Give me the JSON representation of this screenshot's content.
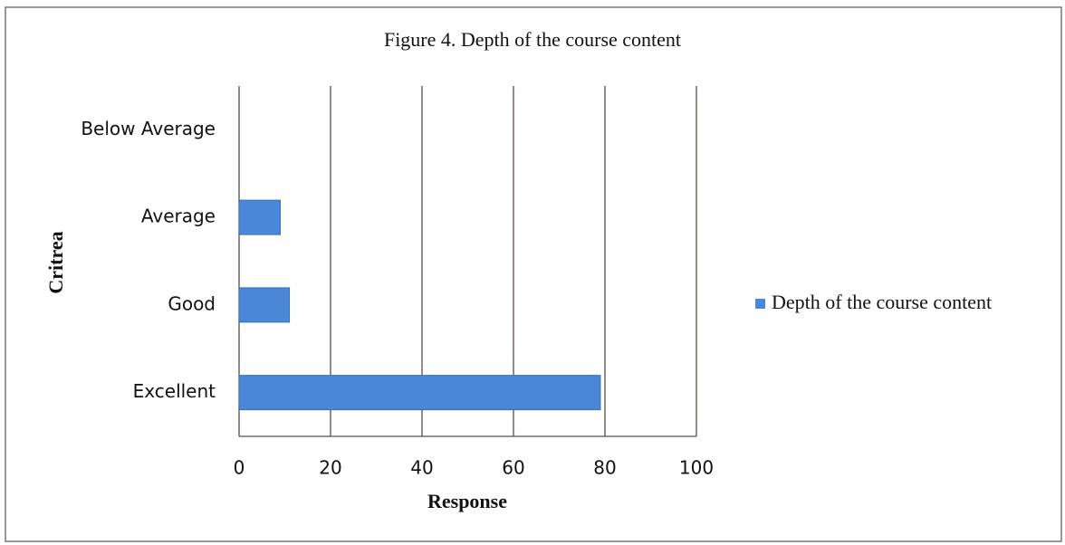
{
  "chart_data": {
    "type": "hbar",
    "title": "Figure 4. Depth of the course content",
    "categories": [
      "Below Average",
      "Average",
      "Good",
      "Excellent"
    ],
    "series": [
      {
        "name": "Depth of the course content",
        "color": "#4a87d6",
        "values": [
          0,
          9,
          11,
          79
        ]
      }
    ],
    "xlim": [
      0,
      100
    ],
    "xticks": [
      0,
      20,
      40,
      60,
      80,
      100
    ],
    "grid": true,
    "xlabel": "Response",
    "ylabel": "Critrea",
    "legend": "right"
  }
}
